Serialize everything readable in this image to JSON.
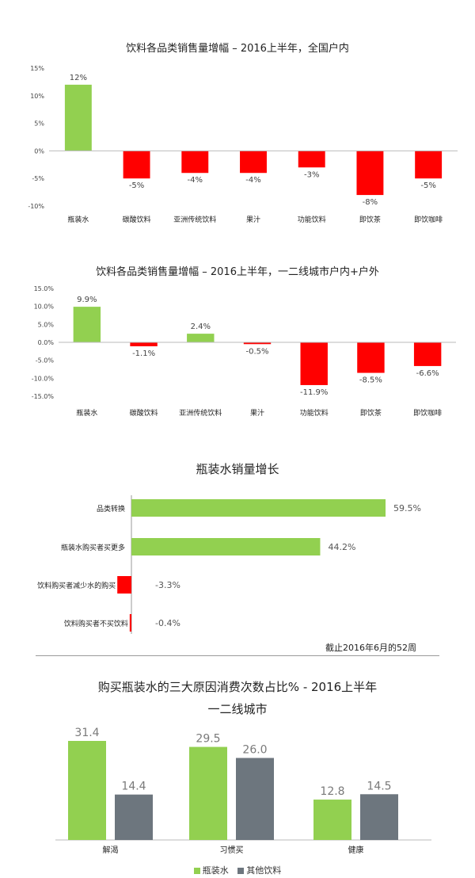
{
  "chart_data": [
    {
      "type": "bar",
      "title": "饮料各品类销售量增幅 – 2016上半年，全国户内",
      "categories": [
        "瓶装水",
        "碳酸饮料",
        "亚洲传统饮料",
        "果汁",
        "功能饮料",
        "即饮茶",
        "即饮咖啡"
      ],
      "values": [
        12,
        -5,
        -4,
        -4,
        -3,
        -8,
        -5
      ],
      "data_labels": [
        "12%",
        "-5%",
        "-4%",
        "-4%",
        "-3%",
        "-8%",
        "-5%"
      ],
      "ylim": [
        -10,
        15
      ],
      "yticks": [
        15,
        10,
        5,
        0,
        -5,
        -10
      ],
      "ytick_labels": [
        "15%",
        "10%",
        "5%",
        "0%",
        "-5%",
        "-10%"
      ],
      "positive_color": "#92d050",
      "negative_color": "#ff0000"
    },
    {
      "type": "bar",
      "title": "饮料各品类销售量增幅 – 2016上半年，一二线城市户内+户外",
      "categories": [
        "瓶装水",
        "碳酸饮料",
        "亚洲传统饮料",
        "果汁",
        "功能饮料",
        "即饮茶",
        "即饮咖啡"
      ],
      "values": [
        9.9,
        -1.1,
        2.4,
        -0.5,
        -11.9,
        -8.5,
        -6.6
      ],
      "data_labels": [
        "9.9%",
        "-1.1%",
        "2.4%",
        "-0.5%",
        "-11.9%",
        "-8.5%",
        "-6.6%"
      ],
      "ylim": [
        -15,
        15
      ],
      "yticks": [
        15,
        10,
        5,
        0,
        -5,
        -10,
        -15
      ],
      "ytick_labels": [
        "15.0%",
        "10.0%",
        "5.0%",
        "0.0%",
        "-5.0%",
        "-10.0%",
        "-15.0%"
      ],
      "positive_color": "#92d050",
      "negative_color": "#ff0000"
    },
    {
      "type": "bar",
      "orientation": "horizontal",
      "title": "瓶装水销量增长",
      "categories": [
        "品类转换",
        "瓶装水购买者买更多",
        "饮料购买者减少水的购买",
        "饮料购买者不买饮料"
      ],
      "values": [
        59.5,
        44.2,
        -3.3,
        -0.4
      ],
      "data_labels": [
        "59.5%",
        "44.2%",
        "-3.3%",
        "-0.4%"
      ],
      "note": "截止2016年6月的52周",
      "positive_color": "#92d050",
      "negative_color": "#ff0000"
    },
    {
      "type": "bar",
      "title": "购买瓶装水的三大原因消费次数占比% - 2016上半年",
      "subtitle": "一二线城市",
      "categories": [
        "解渴",
        "习惯买",
        "健康"
      ],
      "series": [
        {
          "name": "瓶装水",
          "values": [
            31.4,
            29.5,
            12.8
          ],
          "color": "#92d050"
        },
        {
          "name": "其他饮料",
          "values": [
            14.4,
            26.0,
            14.5
          ],
          "color": "#6d767e"
        }
      ],
      "data_labels": [
        [
          "31.4",
          "29.5",
          "12.8"
        ],
        [
          "14.4",
          "26.0",
          "14.5"
        ]
      ],
      "legend_position": "bottom"
    }
  ]
}
